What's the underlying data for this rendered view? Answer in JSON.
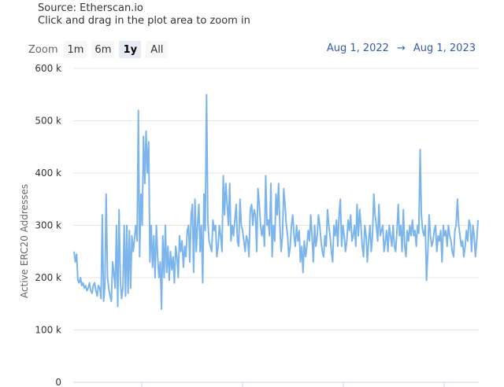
{
  "header": {
    "source": "Source: Etherscan.io",
    "hint": "Click and drag in the plot area to zoom in"
  },
  "zoom": {
    "label": "Zoom",
    "buttons": [
      "1m",
      "6m",
      "1y",
      "All"
    ],
    "active": "1y"
  },
  "range": {
    "from": "Aug 1, 2022",
    "arrow": "→",
    "to": "Aug 1, 2023"
  },
  "colors": {
    "series": "#7cb5ec",
    "grid": "#e6e6e6",
    "active_button": "#e6ebf5"
  },
  "chart_data": {
    "type": "line",
    "ylabel": "Active ERC20 Addresses",
    "ylim": [
      0,
      600000
    ],
    "y_ticks": [
      0,
      100000,
      200000,
      300000,
      400000,
      500000,
      600000
    ],
    "y_tick_labels": [
      "0",
      "100 k",
      "200 k",
      "300 k",
      "400 k",
      "500 k",
      "600 k"
    ],
    "x_range": [
      "Aug 1, 2022",
      "Aug 1, 2023"
    ],
    "grid": true,
    "series": [
      {
        "values": [
          250000,
          230000,
          245000,
          195000,
          190000,
          200000,
          185000,
          190000,
          180000,
          185000,
          175000,
          180000,
          190000,
          175000,
          170000,
          185000,
          190000,
          175000,
          165000,
          185000,
          180000,
          160000,
          320000,
          155000,
          185000,
          360000,
          200000,
          180000,
          165000,
          155000,
          230000,
          210000,
          180000,
          300000,
          145000,
          330000,
          195000,
          160000,
          180000,
          300000,
          165000,
          300000,
          170000,
          290000,
          180000,
          280000,
          250000,
          275000,
          300000,
          270000,
          520000,
          240000,
          360000,
          300000,
          470000,
          380000,
          480000,
          400000,
          460000,
          230000,
          300000,
          220000,
          280000,
          200000,
          300000,
          240000,
          200000,
          230000,
          140000,
          280000,
          200000,
          300000,
          210000,
          260000,
          195000,
          250000,
          215000,
          240000,
          190000,
          260000,
          240000,
          200000,
          280000,
          250000,
          270000,
          220000,
          260000,
          240000,
          290000,
          300000,
          230000,
          320000,
          340000,
          210000,
          350000,
          250000,
          300000,
          340000,
          250000,
          300000,
          190000,
          360000,
          290000,
          550000,
          310000,
          270000,
          260000,
          250000,
          310000,
          290000,
          300000,
          240000,
          260000,
          300000,
          280000,
          250000,
          395000,
          320000,
          380000,
          340000,
          300000,
          380000,
          270000,
          300000,
          280000,
          310000,
          340000,
          270000,
          260000,
          350000,
          300000,
          290000,
          270000,
          250000,
          280000,
          270000,
          240000,
          330000,
          340000,
          300000,
          330000,
          320000,
          250000,
          370000,
          340000,
          300000,
          280000,
          300000,
          260000,
          395000,
          300000,
          310000,
          280000,
          380000,
          240000,
          300000,
          270000,
          360000,
          320000,
          380000,
          300000,
          250000,
          280000,
          370000,
          340000,
          300000,
          280000,
          240000,
          260000,
          300000,
          320000,
          280000,
          260000,
          300000,
          270000,
          290000,
          230000,
          260000,
          210000,
          270000,
          240000,
          260000,
          290000,
          270000,
          320000,
          280000,
          230000,
          300000,
          260000,
          280000,
          320000,
          300000,
          270000,
          250000,
          240000,
          280000,
          260000,
          330000,
          300000,
          280000,
          250000,
          230000,
          300000,
          280000,
          310000,
          260000,
          320000,
          350000,
          260000,
          300000,
          280000,
          250000,
          270000,
          310000,
          290000,
          320000,
          270000,
          280000,
          300000,
          260000,
          340000,
          280000,
          330000,
          300000,
          260000,
          240000,
          300000,
          280000,
          230000,
          270000,
          300000,
          250000,
          280000,
          360000,
          320000,
          300000,
          270000,
          340000,
          280000,
          290000,
          300000,
          250000,
          270000,
          290000,
          250000,
          300000,
          280000,
          260000,
          300000,
          260000,
          250000,
          290000,
          340000,
          280000,
          300000,
          250000,
          330000,
          260000,
          240000,
          290000,
          270000,
          300000,
          280000,
          310000,
          280000,
          290000,
          260000,
          300000,
          285000,
          445000,
          320000,
          290000,
          280000,
          300000,
          195000,
          250000,
          320000,
          280000,
          260000,
          270000,
          290000,
          300000,
          250000,
          280000,
          270000,
          290000,
          230000,
          300000,
          280000,
          290000,
          260000,
          300000,
          280000,
          270000,
          250000,
          240000,
          290000,
          300000,
          350000,
          300000,
          280000,
          260000,
          270000,
          240000,
          260000,
          290000,
          270000,
          310000,
          300000,
          250000,
          300000,
          280000,
          240000,
          270000,
          310000
        ]
      }
    ]
  }
}
